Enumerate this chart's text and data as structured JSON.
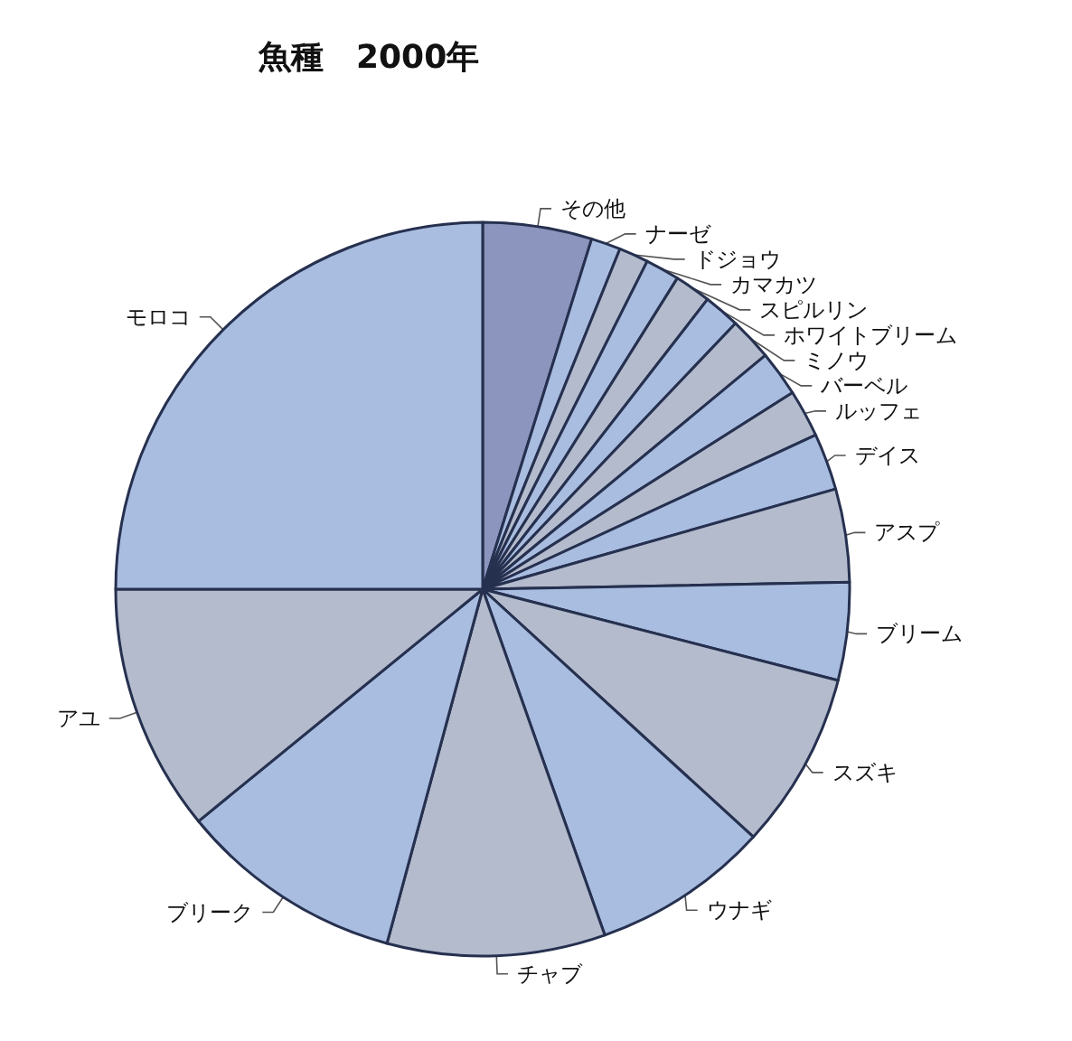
{
  "chart_data": {
    "type": "pie",
    "title": "魚種　2000年",
    "categories": [
      "その他",
      "ナーゼ",
      "ドジョウ",
      "カマカツ",
      "スピルリン",
      "ホワイトブリーム",
      "ミノウ",
      "バーベル",
      "ルッフェ",
      "デイス",
      "アスプ",
      "ブリーム",
      "スズキ",
      "ウナギ",
      "チャブ",
      "ブリーク",
      "アユ",
      "モロコ"
    ],
    "values": [
      4.8,
      1.3,
      1.3,
      1.5,
      1.6,
      1.6,
      1.9,
      2.0,
      2.1,
      2.5,
      4.1,
      4.3,
      7.8,
      7.8,
      9.6,
      9.9,
      10.9,
      25.0
    ],
    "colors": [
      "#8c95bd",
      "#a9bde0",
      "#b3bbcd",
      "#a9bde0",
      "#b3bbcd",
      "#a9bde0",
      "#b3bbcd",
      "#a9bde0",
      "#b3bbcd",
      "#a9bde0",
      "#b3bbcd",
      "#a9bde0",
      "#b3bbcd",
      "#a9bde0",
      "#b3bbcd",
      "#a9bde0",
      "#b3bbcd",
      "#a9bde0"
    ],
    "legend": false
  }
}
